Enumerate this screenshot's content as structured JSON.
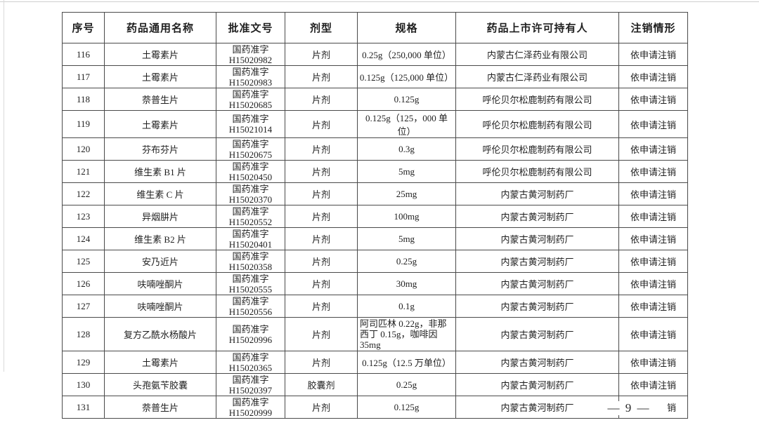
{
  "footer": {
    "page_number": "— 9 —"
  },
  "colors": {
    "border": "#4a4a4a",
    "text": "#1f1f1f",
    "background": "#ffffff"
  },
  "table": {
    "headers": [
      "序号",
      "药品通用名称",
      "批准文号",
      "剂型",
      "规格",
      "药品上市许可持有人",
      "注销情形"
    ],
    "rows": [
      {
        "no": "116",
        "name": "土霉素片",
        "approval_line1": "国药准字",
        "approval_line2": "H15020982",
        "form": "片剂",
        "spec": "0.25g（250,000 单位）",
        "holder": "内蒙古仁泽药业有限公司",
        "status": "依申请注销"
      },
      {
        "no": "117",
        "name": "土霉素片",
        "approval_line1": "国药准字",
        "approval_line2": "H15020983",
        "form": "片剂",
        "spec": "0.125g（125,000 单位）",
        "holder": "内蒙古仁泽药业有限公司",
        "status": "依申请注销"
      },
      {
        "no": "118",
        "name": "萘普生片",
        "approval_line1": "国药准字",
        "approval_line2": "H15020685",
        "form": "片剂",
        "spec": "0.125g",
        "holder": "呼伦贝尔松鹿制药有限公司",
        "status": "依申请注销"
      },
      {
        "no": "119",
        "name": "土霉素片",
        "approval_line1": "国药准字",
        "approval_line2": "H15021014",
        "form": "片剂",
        "spec": "0.125g（125，000 单位）",
        "holder": "呼伦贝尔松鹿制药有限公司",
        "status": "依申请注销"
      },
      {
        "no": "120",
        "name": "芬布芬片",
        "approval_line1": "国药准字",
        "approval_line2": "H15020675",
        "form": "片剂",
        "spec": "0.3g",
        "holder": "呼伦贝尔松鹿制药有限公司",
        "status": "依申请注销"
      },
      {
        "no": "121",
        "name": "维生素 B1 片",
        "approval_line1": "国药准字",
        "approval_line2": "H15020450",
        "form": "片剂",
        "spec": "5mg",
        "holder": "呼伦贝尔松鹿制药有限公司",
        "status": "依申请注销"
      },
      {
        "no": "122",
        "name": "维生素 C 片",
        "approval_line1": "国药准字",
        "approval_line2": "H15020370",
        "form": "片剂",
        "spec": "25mg",
        "holder": "内蒙古黄河制药厂",
        "status": "依申请注销"
      },
      {
        "no": "123",
        "name": "异烟肼片",
        "approval_line1": "国药准字",
        "approval_line2": "H15020552",
        "form": "片剂",
        "spec": "100mg",
        "holder": "内蒙古黄河制药厂",
        "status": "依申请注销"
      },
      {
        "no": "124",
        "name": "维生素 B2 片",
        "approval_line1": "国药准字",
        "approval_line2": "H15020401",
        "form": "片剂",
        "spec": "5mg",
        "holder": "内蒙古黄河制药厂",
        "status": "依申请注销"
      },
      {
        "no": "125",
        "name": "安乃近片",
        "approval_line1": "国药准字",
        "approval_line2": "H15020358",
        "form": "片剂",
        "spec": "0.25g",
        "holder": "内蒙古黄河制药厂",
        "status": "依申请注销"
      },
      {
        "no": "126",
        "name": "呋喃唑酮片",
        "approval_line1": "国药准字",
        "approval_line2": "H15020555",
        "form": "片剂",
        "spec": "30mg",
        "holder": "内蒙古黄河制药厂",
        "status": "依申请注销"
      },
      {
        "no": "127",
        "name": "呋喃唑酮片",
        "approval_line1": "国药准字",
        "approval_line2": "H15020556",
        "form": "片剂",
        "spec": "0.1g",
        "holder": "内蒙古黄河制药厂",
        "status": "依申请注销"
      },
      {
        "no": "128",
        "name": "复方乙酰水杨酸片",
        "approval_line1": "国药准字",
        "approval_line2": "H15020996",
        "form": "片剂",
        "spec": "阿司匹林 0.22g，非那西丁 0.15g，咖啡因 35mg",
        "holder": "内蒙古黄河制药厂",
        "status": "依申请注销"
      },
      {
        "no": "129",
        "name": "土霉素片",
        "approval_line1": "国药准字",
        "approval_line2": "H15020365",
        "form": "片剂",
        "spec": "0.125g（12.5 万单位）",
        "holder": "内蒙古黄河制药厂",
        "status": "依申请注销"
      },
      {
        "no": "130",
        "name": "头孢氨苄胶囊",
        "approval_line1": "国药准字",
        "approval_line2": "H15020397",
        "form": "胶囊剂",
        "spec": "0.25g",
        "holder": "内蒙古黄河制药厂",
        "status": "依申请注销"
      },
      {
        "no": "131",
        "name": "萘普生片",
        "approval_line1": "国药准字",
        "approval_line2": "H15020999",
        "form": "片剂",
        "spec": "0.125g",
        "holder": "内蒙古黄河制药厂",
        "status": "依申请注销"
      }
    ]
  }
}
